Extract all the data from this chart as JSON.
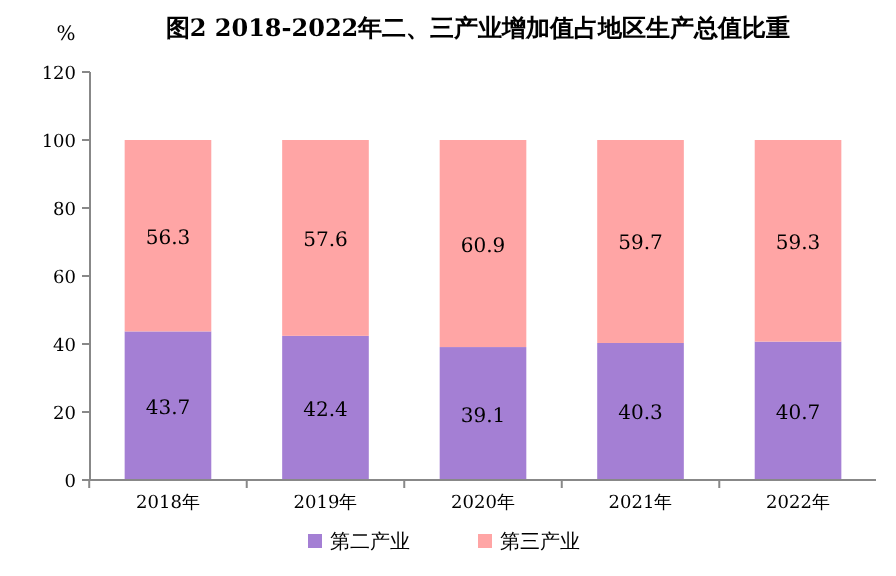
{
  "chart_data": {
    "type": "bar",
    "title": "图2  2018-2022年二、三产业增加值占地区生产总值比重",
    "ylabel": "%",
    "categories": [
      "2018年",
      "2019年",
      "2020年",
      "2021年",
      "2022年"
    ],
    "series": [
      {
        "name": "第二产业",
        "color": "#a47fd4",
        "values": [
          43.7,
          42.4,
          39.1,
          40.3,
          40.7
        ]
      },
      {
        "name": "第三产业",
        "color": "#ffa5a5",
        "values": [
          56.3,
          57.6,
          60.9,
          59.7,
          59.3
        ]
      }
    ],
    "stacked": true,
    "ylim": [
      0,
      120
    ],
    "yticks": [
      0,
      20,
      40,
      60,
      80,
      100,
      120
    ],
    "data_labels": true,
    "legend": "bottom",
    "grid": false
  }
}
